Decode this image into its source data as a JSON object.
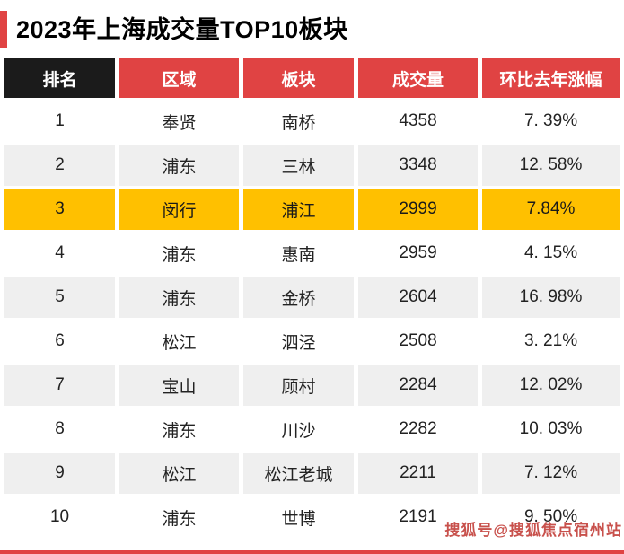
{
  "title": "2023年上海成交量TOP10板块",
  "colors": {
    "accent_red": "#e04343",
    "header_black": "#1b1b1b",
    "highlight_gold": "#ffc000",
    "alt_row_gray": "#efefef",
    "watermark_red": "#be322d"
  },
  "table": {
    "headers": [
      "排名",
      "区域",
      "板块",
      "成交量",
      "环比去年涨幅"
    ],
    "rows": [
      {
        "rank": "1",
        "region": "奉贤",
        "block": "南桥",
        "volume": "4358",
        "change": "7. 39%"
      },
      {
        "rank": "2",
        "region": "浦东",
        "block": "三林",
        "volume": "3348",
        "change": "12. 58%"
      },
      {
        "rank": "3",
        "region": "闵行",
        "block": "浦江",
        "volume": "2999",
        "change": "7.84%"
      },
      {
        "rank": "4",
        "region": "浦东",
        "block": "惠南",
        "volume": "2959",
        "change": "4. 15%"
      },
      {
        "rank": "5",
        "region": "浦东",
        "block": "金桥",
        "volume": "2604",
        "change": "16. 98%"
      },
      {
        "rank": "6",
        "region": "松江",
        "block": "泗泾",
        "volume": "2508",
        "change": "3. 21%"
      },
      {
        "rank": "7",
        "region": "宝山",
        "block": "顾村",
        "volume": "2284",
        "change": "12. 02%"
      },
      {
        "rank": "8",
        "region": "浦东",
        "block": "川沙",
        "volume": "2282",
        "change": "10. 03%"
      },
      {
        "rank": "9",
        "region": "松江",
        "block": "松江老城",
        "volume": "2211",
        "change": "7. 12%"
      },
      {
        "rank": "10",
        "region": "浦东",
        "block": "世博",
        "volume": "2191",
        "change": "9. 50%"
      }
    ]
  },
  "watermark": "搜狐号@搜狐焦点宿州站",
  "chart_data": {
    "type": "table",
    "title": "2023年上海成交量TOP10板块",
    "columns": [
      "排名",
      "区域",
      "板块",
      "成交量",
      "环比去年涨幅"
    ],
    "rows": [
      [
        1,
        "奉贤",
        "南桥",
        4358,
        "7.39%"
      ],
      [
        2,
        "浦东",
        "三林",
        3348,
        "12.58%"
      ],
      [
        3,
        "闵行",
        "浦江",
        2999,
        "7.84%"
      ],
      [
        4,
        "浦东",
        "惠南",
        2959,
        "4.15%"
      ],
      [
        5,
        "浦东",
        "金桥",
        2604,
        "16.98%"
      ],
      [
        6,
        "松江",
        "泗泾",
        2508,
        "3.21%"
      ],
      [
        7,
        "宝山",
        "顾村",
        2284,
        "12.02%"
      ],
      [
        8,
        "浦东",
        "川沙",
        2282,
        "10.03%"
      ],
      [
        9,
        "松江",
        "松江老城",
        2211,
        "7.12%"
      ],
      [
        10,
        "浦东",
        "世博",
        2191,
        "9.50%"
      ]
    ],
    "highlighted_rank": 3,
    "layout": {
      "header_style": "black-rank-red-rest",
      "zebra_rows": true
    }
  }
}
